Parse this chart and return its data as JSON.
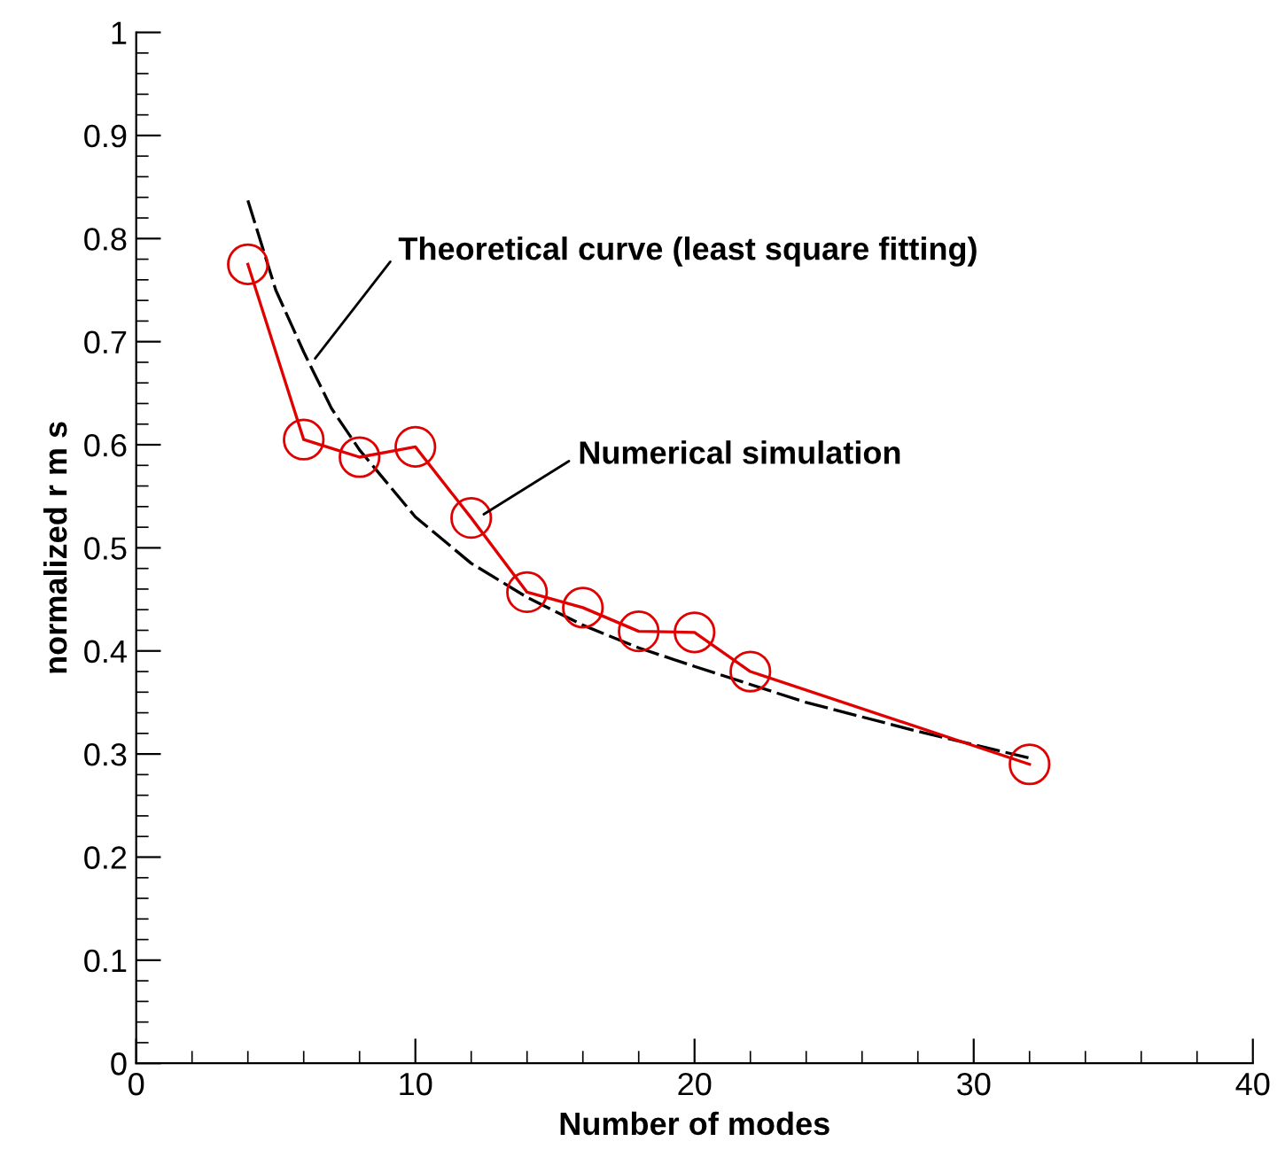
{
  "chart_data": {
    "type": "line",
    "xlabel": "Number of modes",
    "ylabel": "normalized r m s",
    "xlim": [
      0,
      40
    ],
    "xticks": [
      0,
      10,
      20,
      30,
      40
    ],
    "ylim": [
      0,
      1
    ],
    "yticks": [
      0,
      0.1,
      0.2,
      0.3,
      0.4,
      0.5,
      0.6,
      0.7,
      0.8,
      0.9,
      1
    ],
    "grid": false,
    "legend": false,
    "series": [
      {
        "color": "#000000",
        "line_style": "dashed",
        "marker": "none",
        "x": [
          4,
          5,
          6,
          7,
          8,
          10,
          12,
          14,
          16,
          18,
          20,
          24,
          28,
          32
        ],
        "values": [
          0.837,
          0.75,
          0.69,
          0.635,
          0.595,
          0.53,
          0.485,
          0.452,
          0.425,
          0.403,
          0.385,
          0.35,
          0.322,
          0.296
        ]
      },
      {
        "color": "#e00000",
        "line_style": "solid",
        "marker": "circle",
        "x": [
          4,
          6,
          8,
          10,
          12,
          14,
          16,
          18,
          20,
          22,
          32
        ],
        "values": [
          0.775,
          0.605,
          0.588,
          0.598,
          0.529,
          0.457,
          0.442,
          0.419,
          0.418,
          0.38,
          0.29
        ]
      }
    ],
    "annotations": [
      {
        "text": "Theoretical curve (least square fitting)",
        "x": 6.3,
        "y": 0.68
      },
      {
        "text": "Numerical simulation",
        "x": 12.3,
        "y": 0.53
      }
    ]
  }
}
